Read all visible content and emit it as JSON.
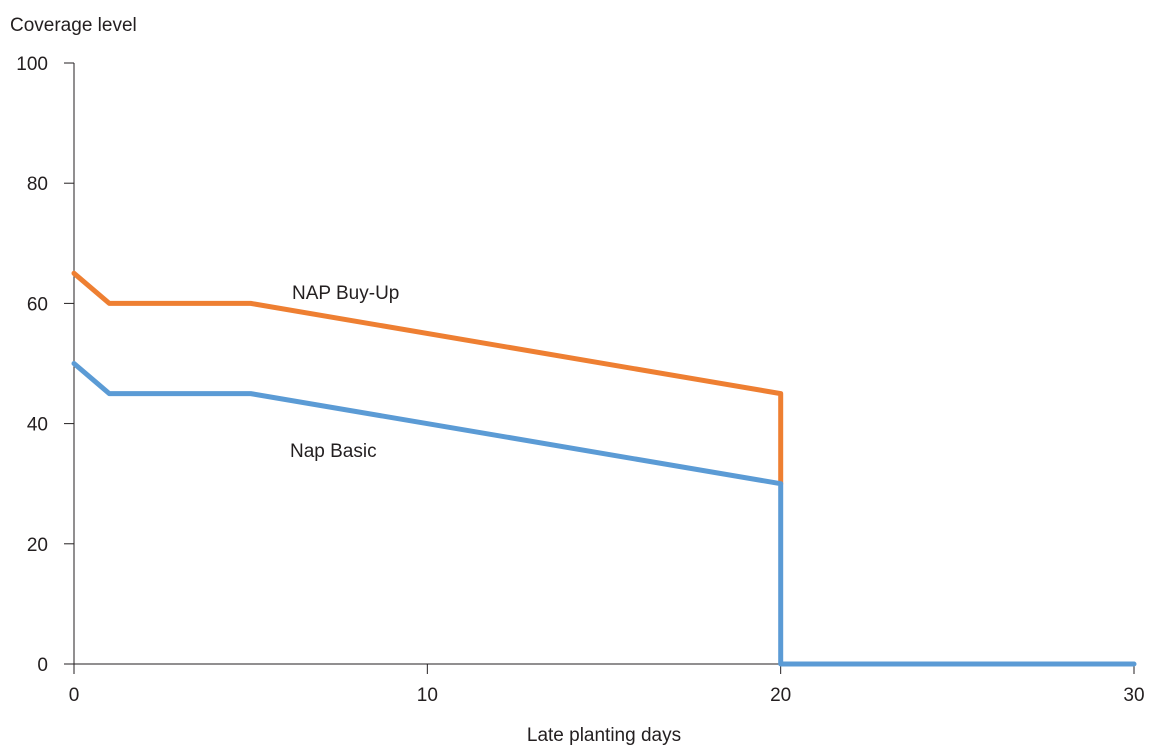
{
  "chart_data": {
    "type": "line",
    "xlabel": "Late planting days",
    "ylabel": "Coverage level",
    "xlim": [
      0,
      30
    ],
    "ylim": [
      0,
      100
    ],
    "xticks": [
      0,
      10,
      20,
      30
    ],
    "yticks": [
      0,
      20,
      40,
      60,
      80,
      100
    ],
    "grid": false,
    "series": [
      {
        "name": "NAP Buy-Up",
        "color": "#ee7f32",
        "x": [
          0,
          1,
          5,
          20,
          20
        ],
        "y": [
          65,
          60,
          60,
          45,
          30
        ]
      },
      {
        "name": "Nap Basic",
        "color": "#5b9bd5",
        "x": [
          0,
          1,
          5,
          20,
          20,
          30
        ],
        "y": [
          50,
          45,
          45,
          30,
          0,
          0
        ]
      }
    ]
  }
}
